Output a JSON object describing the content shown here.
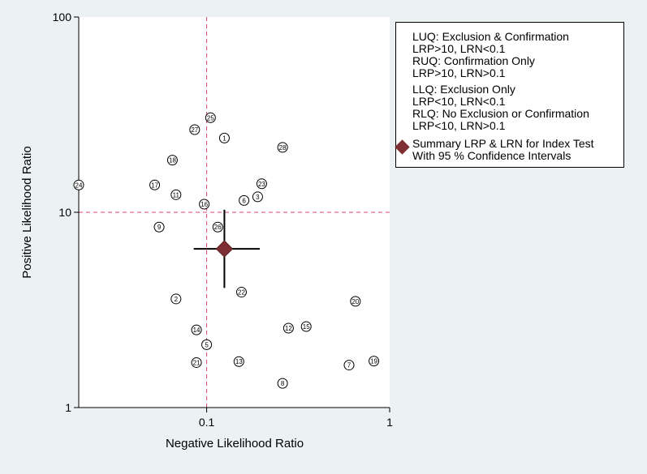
{
  "chart_data": {
    "type": "scatter",
    "xscale": "log",
    "yscale": "log",
    "xlabel": "Negative Likelihood Ratio",
    "ylabel": "Positive Likelihood Ratio",
    "xlim": [
      0.02,
      1
    ],
    "ylim": [
      1,
      100
    ],
    "x_ticks": [
      0.1,
      1
    ],
    "x_tick_labels": [
      "0.1",
      "1"
    ],
    "y_ticks": [
      1,
      10,
      100
    ],
    "y_tick_labels": [
      "1",
      "10",
      "100"
    ],
    "reference_lines": {
      "lrn": 0.1,
      "lrp": 10,
      "style": "dashed",
      "color": "#d9436a"
    },
    "studies": [
      {
        "id": "1",
        "lrn": 0.125,
        "lrp": 24
      },
      {
        "id": "2",
        "lrn": 0.068,
        "lrp": 3.6
      },
      {
        "id": "3",
        "lrn": 0.19,
        "lrp": 12
      },
      {
        "id": "5",
        "lrn": 0.1,
        "lrp": 2.1
      },
      {
        "id": "6",
        "lrn": 0.16,
        "lrp": 11.5
      },
      {
        "id": "7",
        "lrn": 0.6,
        "lrp": 1.65
      },
      {
        "id": "8",
        "lrn": 0.26,
        "lrp": 1.33
      },
      {
        "id": "9",
        "lrn": 0.055,
        "lrp": 8.4
      },
      {
        "id": "11",
        "lrn": 0.068,
        "lrp": 12.3
      },
      {
        "id": "12",
        "lrn": 0.28,
        "lrp": 2.55
      },
      {
        "id": "13",
        "lrn": 0.15,
        "lrp": 1.72
      },
      {
        "id": "14",
        "lrn": 0.088,
        "lrp": 2.5
      },
      {
        "id": "15",
        "lrn": 0.35,
        "lrp": 2.6
      },
      {
        "id": "16",
        "lrn": 0.097,
        "lrp": 11
      },
      {
        "id": "17",
        "lrn": 0.052,
        "lrp": 13.8
      },
      {
        "id": "18",
        "lrn": 0.065,
        "lrp": 18.5
      },
      {
        "id": "19",
        "lrn": 0.82,
        "lrp": 1.73
      },
      {
        "id": "20",
        "lrn": 0.65,
        "lrp": 3.5
      },
      {
        "id": "21",
        "lrn": 0.088,
        "lrp": 1.7
      },
      {
        "id": "22",
        "lrn": 0.155,
        "lrp": 3.9
      },
      {
        "id": "23",
        "lrn": 0.2,
        "lrp": 14
      },
      {
        "id": "24",
        "lrn": 0.02,
        "lrp": 13.8
      },
      {
        "id": "25",
        "lrn": 0.105,
        "lrp": 30.5
      },
      {
        "id": "26",
        "lrn": 0.115,
        "lrp": 8.4
      },
      {
        "id": "27",
        "lrn": 0.086,
        "lrp": 26.5
      },
      {
        "id": "28",
        "lrn": 0.26,
        "lrp": 21.5
      }
    ],
    "summary": {
      "lrn": 0.125,
      "lrp": 6.5,
      "lrn_ci": [
        0.085,
        0.195
      ],
      "lrp_ci": [
        4.1,
        10.3
      ],
      "marker": "diamond",
      "color": "#7d2f33"
    },
    "legend": {
      "position": "top-right",
      "entries": [
        {
          "line1": "LUQ: Exclusion & Confirmation",
          "line2": "LRP>10, LRN<0.1"
        },
        {
          "line1": "RUQ: Confirmation Only",
          "line2": "LRP>10, LRN>0.1"
        },
        {
          "line1": "LLQ: Exclusion Only",
          "line2": "LRP<10, LRN<0.1"
        },
        {
          "line1": "RLQ: No Exclusion or Confirmation",
          "line2": "LRP<10, LRN>0.1"
        },
        {
          "line1": "Summary LRP & LRN for Index Test",
          "line2": "With 95 % Confidence Intervals"
        }
      ]
    }
  }
}
